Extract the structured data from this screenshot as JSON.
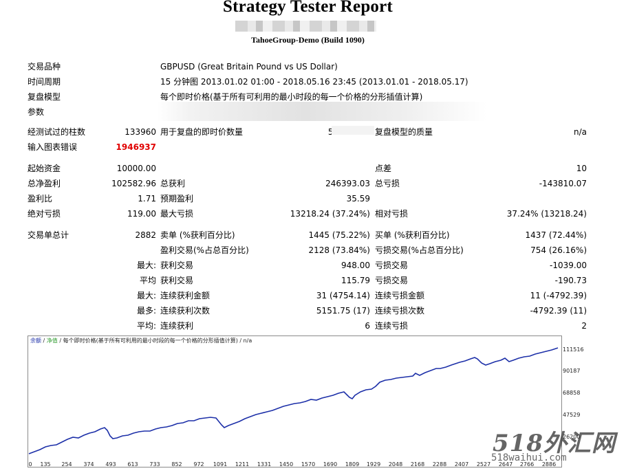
{
  "report": {
    "title": "Strategy Tester Report",
    "subtitle": "TahoeGroup-Demo (Build 1090)"
  },
  "info": {
    "symbol_label": "交易品种",
    "symbol_value": "GBPUSD (Great Britain Pound vs US Dollar)",
    "period_label": "时间周期",
    "period_value": "15 分钟图 2013.01.02 01:00 - 2018.05.16 23:45 (2013.01.01 - 2018.05.17)",
    "model_label": "复盘模型",
    "model_value": "每个即时价格(基于所有可利用的最小时段的每一个价格的分形插值计算)",
    "params_label": "参数",
    "params_value": "falseStr1"
  },
  "bars": {
    "bars_label": "经测试过的柱数",
    "bars_value": "133960",
    "ticks_label": "用于复盘的即时价数量",
    "ticks_value": "59715965",
    "quality_label": "复盘模型的质量",
    "quality_value": "n/a",
    "errors_label": "输入图表错误",
    "errors_value": "1946937"
  },
  "stats": {
    "deposit_label": "起始资金",
    "deposit_value": "10000.00",
    "spread_label": "点差",
    "spread_value": "10",
    "net_label": "总净盈利",
    "net_value": "102582.96",
    "gross_profit_label": "总获利",
    "gross_profit_value": "246393.03",
    "gross_loss_label": "总亏损",
    "gross_loss_value": "-143810.07",
    "pf_label": "盈利比",
    "pf_value": "1.71",
    "expected_label": "预期盈利",
    "expected_value": "35.59",
    "abs_dd_label": "绝对亏损",
    "abs_dd_value": "119.00",
    "max_dd_label": "最大亏损",
    "max_dd_value": "13218.24 (37.24%)",
    "rel_dd_label": "相对亏损",
    "rel_dd_value": "37.24% (13218.24)",
    "trades_label": "交易单总计",
    "trades_value": "2882",
    "short_label": "卖单 (%获利百分比)",
    "short_value": "1445 (75.22%)",
    "long_label": "买单 (%获利百分比)",
    "long_value": "1437 (72.44%)",
    "profit_trades_label": "盈利交易(%占总百分比)",
    "profit_trades_value": "2128 (73.84%)",
    "loss_trades_label": "亏损交易(%占总百分比)",
    "loss_trades_value": "754 (26.16%)",
    "largest_label": "最大:",
    "largest_profit_label": "获利交易",
    "largest_profit_value": "948.00",
    "largest_loss_label": "亏损交易",
    "largest_loss_value": "-1039.00",
    "average_label": "平均",
    "average_profit_label": "获利交易",
    "average_profit_value": "115.79",
    "average_loss_label": "亏损交易",
    "average_loss_value": "-190.73",
    "max_cons_label": "最大:",
    "max_cons_wins_label": "连续获利金额",
    "max_cons_wins_value": "31 (4754.14)",
    "max_cons_losses_label": "连续亏损金额",
    "max_cons_losses_value": "11 (-4792.39)",
    "maximal_label": "最多:",
    "maximal_wins_label": "连续获利次数",
    "maximal_wins_value": "5151.75 (17)",
    "maximal_losses_label": "连续亏损次数",
    "maximal_losses_value": "-4792.39 (11)",
    "avg_cons_label": "平均:",
    "avg_cons_wins_label": "连续获利",
    "avg_cons_wins_value": "6",
    "avg_cons_losses_label": "连续亏损",
    "avg_cons_losses_value": "2"
  },
  "chart": {
    "legend_balance": "余额",
    "legend_sep1": "/",
    "legend_equity": "净值",
    "legend_rest": "/ 每个即时价格(基于所有可利用的最小时段的每一个价格的分形插值计算) / n/a",
    "y_ticks": [
      "111516",
      "90187",
      "68858",
      "47529",
      "26200"
    ],
    "x_ticks": [
      "0",
      "135",
      "254",
      "374",
      "493",
      "613",
      "733",
      "852",
      "972",
      "1091",
      "1211",
      "1331",
      "1450",
      "1570",
      "1690",
      "1809",
      "1929",
      "2048",
      "2168",
      "2288",
      "2407",
      "2527",
      "2647",
      "2766",
      "2886"
    ],
    "line_color": "#1c2fa8"
  },
  "watermark": {
    "logo_text": "518外汇网",
    "url_text": "518waihui.com"
  }
}
